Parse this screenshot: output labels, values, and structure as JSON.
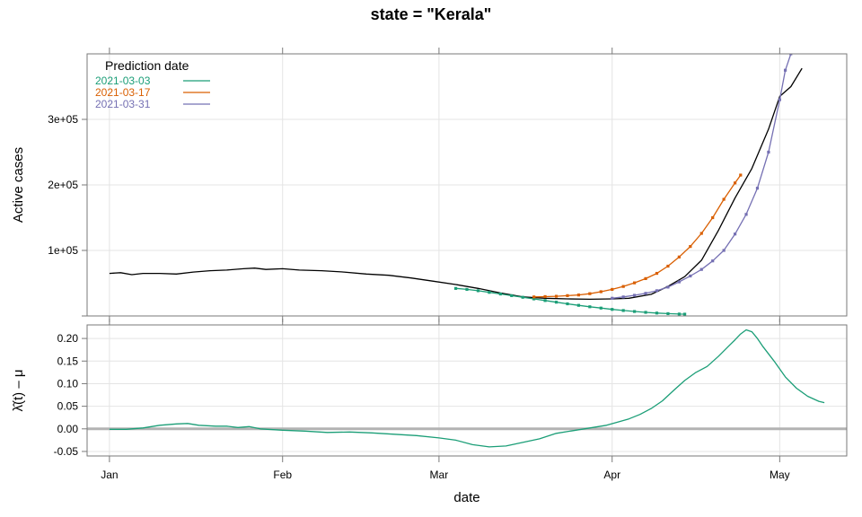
{
  "title": "state = \"Kerala\"",
  "colors": {
    "actual": "#000000",
    "baseline": "#b3b3b3",
    "2021-03-03": "#1b9e77",
    "2021-03-17": "#d95f02",
    "2021-03-31": "#7570b3",
    "lambda": "#1b9e77"
  },
  "chart_data": [
    {
      "type": "line",
      "panel": "top",
      "title": "state = \"Kerala\"",
      "xlabel": "",
      "ylabel": "Active cases",
      "x_type": "date",
      "xlim": [
        "2020-12-28",
        "2021-05-13"
      ],
      "ylim": [
        0,
        400000
      ],
      "x_ticks": [
        {
          "date": "2021-01-01",
          "label": "Jan"
        },
        {
          "date": "2021-02-01",
          "label": "Feb"
        },
        {
          "date": "2021-03-01",
          "label": "Mar"
        },
        {
          "date": "2021-04-01",
          "label": "Apr"
        },
        {
          "date": "2021-05-01",
          "label": "May"
        }
      ],
      "y_ticks": [
        {
          "value": 100000,
          "label": "1e+05"
        },
        {
          "value": 200000,
          "label": "2e+05"
        },
        {
          "value": 300000,
          "label": "3e+05"
        }
      ],
      "grid": true,
      "legend": {
        "title": "Prediction date",
        "position": "top-left",
        "entries": [
          "2021-03-03",
          "2021-03-17",
          "2021-03-31"
        ]
      },
      "series": [
        {
          "key": "actual",
          "markers": false,
          "points": [
            [
              "2021-01-01",
              65000
            ],
            [
              "2021-01-03",
              66000
            ],
            [
              "2021-01-05",
              63000
            ],
            [
              "2021-01-07",
              65000
            ],
            [
              "2021-01-10",
              65000
            ],
            [
              "2021-01-13",
              64000
            ],
            [
              "2021-01-16",
              67000
            ],
            [
              "2021-01-19",
              69000
            ],
            [
              "2021-01-22",
              70000
            ],
            [
              "2021-01-25",
              72000
            ],
            [
              "2021-01-27",
              73000
            ],
            [
              "2021-01-29",
              71000
            ],
            [
              "2021-02-01",
              72000
            ],
            [
              "2021-02-04",
              70000
            ],
            [
              "2021-02-08",
              69000
            ],
            [
              "2021-02-12",
              67000
            ],
            [
              "2021-02-16",
              64000
            ],
            [
              "2021-02-20",
              62000
            ],
            [
              "2021-02-24",
              58000
            ],
            [
              "2021-02-28",
              53000
            ],
            [
              "2021-03-04",
              48000
            ],
            [
              "2021-03-08",
              42000
            ],
            [
              "2021-03-12",
              35000
            ],
            [
              "2021-03-16",
              29000
            ],
            [
              "2021-03-20",
              27000
            ],
            [
              "2021-03-24",
              26000
            ],
            [
              "2021-03-28",
              25500
            ],
            [
              "2021-04-01",
              26000
            ],
            [
              "2021-04-04",
              27000
            ],
            [
              "2021-04-08",
              33000
            ],
            [
              "2021-04-11",
              45000
            ],
            [
              "2021-04-14",
              60000
            ],
            [
              "2021-04-17",
              85000
            ],
            [
              "2021-04-20",
              130000
            ],
            [
              "2021-04-23",
              180000
            ],
            [
              "2021-04-26",
              225000
            ],
            [
              "2021-04-29",
              285000
            ],
            [
              "2021-05-01",
              335000
            ],
            [
              "2021-05-03",
              350000
            ],
            [
              "2021-05-05",
              378000
            ]
          ]
        },
        {
          "key": "2021-03-03",
          "markers": true,
          "points": [
            [
              "2021-03-04",
              42000
            ],
            [
              "2021-03-06",
              40500
            ],
            [
              "2021-03-08",
              38500
            ],
            [
              "2021-03-10",
              36000
            ],
            [
              "2021-03-12",
              33500
            ],
            [
              "2021-03-14",
              31000
            ],
            [
              "2021-03-16",
              28500
            ],
            [
              "2021-03-18",
              26000
            ],
            [
              "2021-03-20",
              23500
            ],
            [
              "2021-03-22",
              21000
            ],
            [
              "2021-03-24",
              18500
            ],
            [
              "2021-03-26",
              16200
            ],
            [
              "2021-03-28",
              14000
            ],
            [
              "2021-03-30",
              12000
            ],
            [
              "2021-04-01",
              10000
            ],
            [
              "2021-04-03",
              8300
            ],
            [
              "2021-04-05",
              6800
            ],
            [
              "2021-04-07",
              5500
            ],
            [
              "2021-04-09",
              4400
            ],
            [
              "2021-04-11",
              3500
            ],
            [
              "2021-04-13",
              2900
            ],
            [
              "2021-04-14",
              2700
            ]
          ]
        },
        {
          "key": "2021-03-17",
          "markers": true,
          "points": [
            [
              "2021-03-18",
              29000
            ],
            [
              "2021-03-20",
              29500
            ],
            [
              "2021-03-22",
              30000
            ],
            [
              "2021-03-24",
              31000
            ],
            [
              "2021-03-26",
              32000
            ],
            [
              "2021-03-28",
              34000
            ],
            [
              "2021-03-30",
              37000
            ],
            [
              "2021-04-01",
              40500
            ],
            [
              "2021-04-03",
              45000
            ],
            [
              "2021-04-05",
              50500
            ],
            [
              "2021-04-07",
              57000
            ],
            [
              "2021-04-09",
              65000
            ],
            [
              "2021-04-11",
              76000
            ],
            [
              "2021-04-13",
              90000
            ],
            [
              "2021-04-15",
              106000
            ],
            [
              "2021-04-17",
              126000
            ],
            [
              "2021-04-19",
              150000
            ],
            [
              "2021-04-21",
              178000
            ],
            [
              "2021-04-23",
              203000
            ],
            [
              "2021-04-24",
              215000
            ]
          ]
        },
        {
          "key": "2021-03-31",
          "markers": true,
          "points": [
            [
              "2021-04-01",
              27000
            ],
            [
              "2021-04-03",
              29000
            ],
            [
              "2021-04-05",
              31500
            ],
            [
              "2021-04-07",
              34500
            ],
            [
              "2021-04-09",
              38500
            ],
            [
              "2021-04-11",
              44000
            ],
            [
              "2021-04-13",
              52000
            ],
            [
              "2021-04-15",
              61000
            ],
            [
              "2021-04-17",
              71000
            ],
            [
              "2021-04-19",
              84000
            ],
            [
              "2021-04-21",
              100000
            ],
            [
              "2021-04-23",
              125000
            ],
            [
              "2021-04-25",
              155000
            ],
            [
              "2021-04-27",
              195000
            ],
            [
              "2021-04-29",
              250000
            ],
            [
              "2021-05-01",
              330000
            ],
            [
              "2021-05-02",
              375000
            ],
            [
              "2021-05-03",
              400000
            ]
          ]
        }
      ]
    },
    {
      "type": "line",
      "panel": "bottom",
      "xlabel": "date",
      "ylabel": "λ̂(t) – μ",
      "x_type": "date",
      "xlim": [
        "2020-12-28",
        "2021-05-13"
      ],
      "ylim": [
        -0.06,
        0.23
      ],
      "x_ticks": [
        {
          "date": "2021-01-01",
          "label": "Jan"
        },
        {
          "date": "2021-02-01",
          "label": "Feb"
        },
        {
          "date": "2021-03-01",
          "label": "Mar"
        },
        {
          "date": "2021-04-01",
          "label": "Apr"
        },
        {
          "date": "2021-05-01",
          "label": "May"
        }
      ],
      "y_ticks": [
        {
          "value": -0.05,
          "label": "-0.05"
        },
        {
          "value": 0.0,
          "label": "0.00"
        },
        {
          "value": 0.05,
          "label": "0.05"
        },
        {
          "value": 0.1,
          "label": "0.10"
        },
        {
          "value": 0.15,
          "label": "0.15"
        },
        {
          "value": 0.2,
          "label": "0.20"
        }
      ],
      "grid": true,
      "reference_line": 0,
      "series": [
        {
          "key": "lambda",
          "markers": false,
          "points": [
            [
              "2021-01-01",
              -0.001
            ],
            [
              "2021-01-04",
              -0.001
            ],
            [
              "2021-01-07",
              0.002
            ],
            [
              "2021-01-10",
              0.008
            ],
            [
              "2021-01-13",
              0.011
            ],
            [
              "2021-01-15",
              0.012
            ],
            [
              "2021-01-17",
              0.008
            ],
            [
              "2021-01-20",
              0.006
            ],
            [
              "2021-01-22",
              0.006
            ],
            [
              "2021-01-24",
              0.003
            ],
            [
              "2021-01-26",
              0.005
            ],
            [
              "2021-01-28",
              0.0
            ],
            [
              "2021-02-01",
              -0.003
            ],
            [
              "2021-02-05",
              -0.005
            ],
            [
              "2021-02-09",
              -0.008
            ],
            [
              "2021-02-13",
              -0.007
            ],
            [
              "2021-02-17",
              -0.009
            ],
            [
              "2021-02-21",
              -0.012
            ],
            [
              "2021-02-25",
              -0.015
            ],
            [
              "2021-03-01",
              -0.02
            ],
            [
              "2021-03-04",
              -0.025
            ],
            [
              "2021-03-07",
              -0.035
            ],
            [
              "2021-03-10",
              -0.04
            ],
            [
              "2021-03-13",
              -0.038
            ],
            [
              "2021-03-16",
              -0.03
            ],
            [
              "2021-03-19",
              -0.022
            ],
            [
              "2021-03-22",
              -0.01
            ],
            [
              "2021-03-25",
              -0.004
            ],
            [
              "2021-03-28",
              0.002
            ],
            [
              "2021-03-31",
              0.008
            ],
            [
              "2021-04-02",
              0.015
            ],
            [
              "2021-04-04",
              0.022
            ],
            [
              "2021-04-06",
              0.032
            ],
            [
              "2021-04-08",
              0.045
            ],
            [
              "2021-04-10",
              0.062
            ],
            [
              "2021-04-12",
              0.085
            ],
            [
              "2021-04-14",
              0.107
            ],
            [
              "2021-04-16",
              0.125
            ],
            [
              "2021-04-18",
              0.138
            ],
            [
              "2021-04-20",
              0.16
            ],
            [
              "2021-04-22",
              0.185
            ],
            [
              "2021-04-23",
              0.197
            ],
            [
              "2021-04-24",
              0.21
            ],
            [
              "2021-04-25",
              0.219
            ],
            [
              "2021-04-26",
              0.215
            ],
            [
              "2021-04-27",
              0.2
            ],
            [
              "2021-04-28",
              0.182
            ],
            [
              "2021-04-30",
              0.15
            ],
            [
              "2021-05-02",
              0.115
            ],
            [
              "2021-05-04",
              0.09
            ],
            [
              "2021-05-06",
              0.072
            ],
            [
              "2021-05-08",
              0.061
            ],
            [
              "2021-05-09",
              0.058
            ]
          ]
        }
      ]
    }
  ]
}
